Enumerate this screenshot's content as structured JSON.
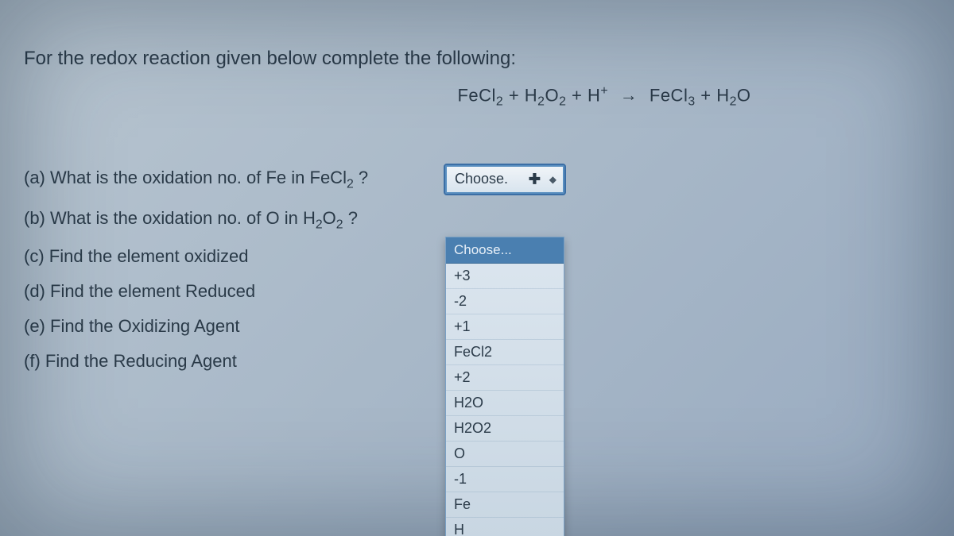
{
  "prompt": "For the redox reaction given below complete the following:",
  "equation_html": "FeCl<sub>2</sub> + H<sub>2</sub>O<sub>2</sub> + H<sup>+</sup> <span class='arrow'>→</span> FeCl<sub>3</sub> + H<sub>2</sub>O",
  "questions": [
    {
      "label_html": "(a) What is the oxidation no. of Fe in FeCl<sub>2</sub> ?",
      "select_label": "Choose.",
      "active": true
    },
    {
      "label_html": "(b) What is the oxidation no. of O in H<sub>2</sub>O<sub>2</sub> ?",
      "select_label": "",
      "has_dropdown": true
    },
    {
      "label_html": "(c) Find the element oxidized",
      "select_label": ""
    },
    {
      "label_html": "(d) Find the element Reduced",
      "select_label": ""
    },
    {
      "label_html": "(e) Find the Oxidizing Agent",
      "select_label": ""
    },
    {
      "label_html": "(f) Find the Reducing Agent",
      "select_label": ""
    }
  ],
  "dropdown": {
    "header": "Choose...",
    "items": [
      "+3",
      "-2",
      "+1",
      "FeCl2",
      "+2",
      "H2O",
      "H2O2",
      "O",
      "-1",
      "Fe",
      "H"
    ]
  },
  "colors": {
    "bg_start": "#b8c5d0",
    "bg_end": "#98aac0",
    "text": "#2a3a48",
    "select_border": "#5a8fc0",
    "dd_header_bg": "#4a7fb0",
    "dd_header_text": "#e8f0f8"
  }
}
